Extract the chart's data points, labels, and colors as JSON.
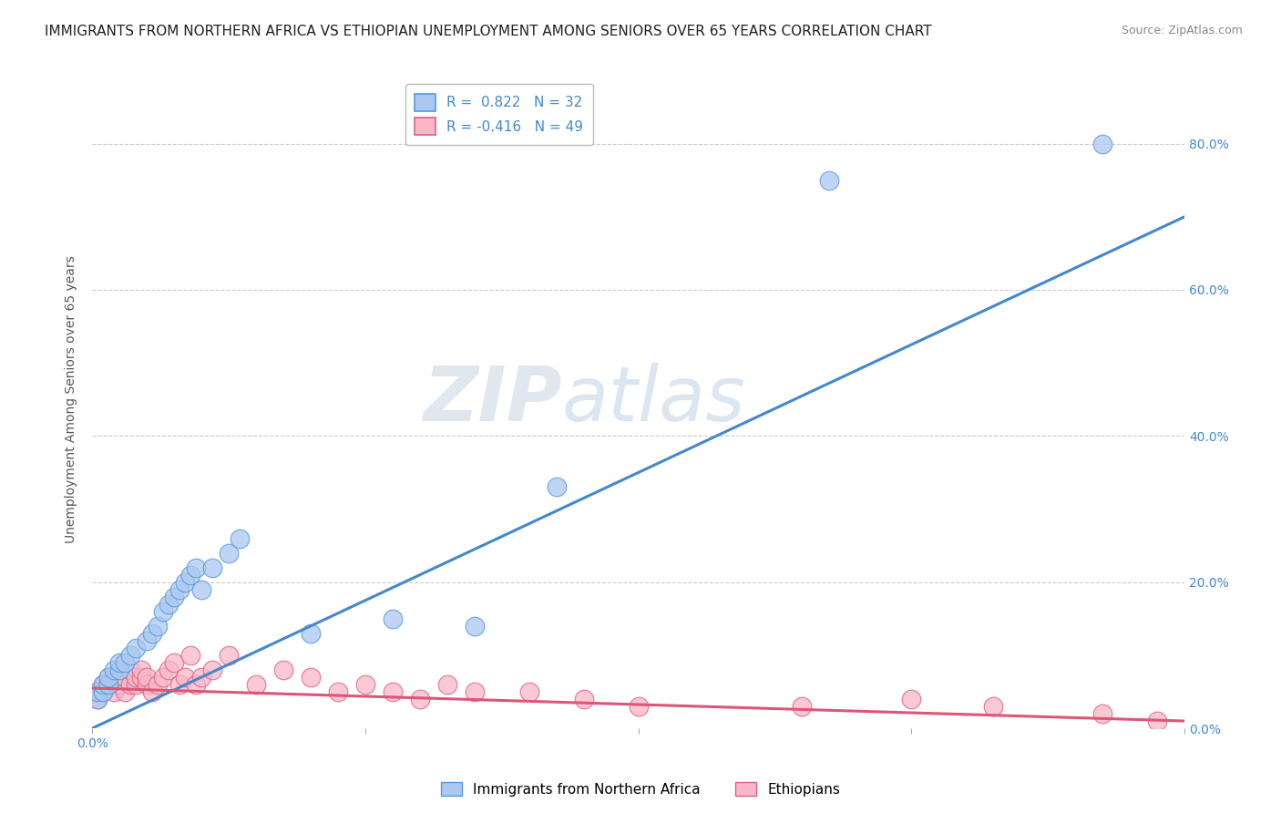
{
  "title": "IMMIGRANTS FROM NORTHERN AFRICA VS ETHIOPIAN UNEMPLOYMENT AMONG SENIORS OVER 65 YEARS CORRELATION CHART",
  "source": "Source: ZipAtlas.com",
  "ylabel": "Unemployment Among Seniors over 65 years",
  "xlabel_blue": "Immigrants from Northern Africa",
  "xlabel_pink": "Ethiopians",
  "R_blue": 0.822,
  "N_blue": 32,
  "R_pink": -0.416,
  "N_pink": 49,
  "xlim": [
    0.0,
    0.2
  ],
  "ylim": [
    0.0,
    0.9
  ],
  "blue_scatter_x": [
    0.001,
    0.001,
    0.002,
    0.002,
    0.003,
    0.003,
    0.004,
    0.005,
    0.005,
    0.006,
    0.007,
    0.008,
    0.01,
    0.011,
    0.012,
    0.013,
    0.014,
    0.015,
    0.016,
    0.017,
    0.018,
    0.019,
    0.02,
    0.022,
    0.025,
    0.027,
    0.04,
    0.055,
    0.07,
    0.085,
    0.135,
    0.185
  ],
  "blue_scatter_y": [
    0.04,
    0.05,
    0.05,
    0.06,
    0.06,
    0.07,
    0.08,
    0.08,
    0.09,
    0.09,
    0.1,
    0.11,
    0.12,
    0.13,
    0.14,
    0.16,
    0.17,
    0.18,
    0.19,
    0.2,
    0.21,
    0.22,
    0.19,
    0.22,
    0.24,
    0.26,
    0.13,
    0.15,
    0.14,
    0.33,
    0.75,
    0.8
  ],
  "pink_scatter_x": [
    0.001,
    0.001,
    0.002,
    0.002,
    0.003,
    0.003,
    0.004,
    0.004,
    0.005,
    0.005,
    0.006,
    0.006,
    0.007,
    0.007,
    0.008,
    0.008,
    0.009,
    0.009,
    0.01,
    0.01,
    0.011,
    0.012,
    0.013,
    0.014,
    0.015,
    0.016,
    0.017,
    0.018,
    0.019,
    0.02,
    0.022,
    0.025,
    0.03,
    0.035,
    0.04,
    0.045,
    0.05,
    0.055,
    0.06,
    0.065,
    0.07,
    0.08,
    0.09,
    0.1,
    0.13,
    0.15,
    0.165,
    0.185,
    0.195
  ],
  "pink_scatter_y": [
    0.04,
    0.05,
    0.05,
    0.06,
    0.06,
    0.07,
    0.05,
    0.07,
    0.06,
    0.07,
    0.05,
    0.07,
    0.06,
    0.08,
    0.06,
    0.07,
    0.07,
    0.08,
    0.06,
    0.07,
    0.05,
    0.06,
    0.07,
    0.08,
    0.09,
    0.06,
    0.07,
    0.1,
    0.06,
    0.07,
    0.08,
    0.1,
    0.06,
    0.08,
    0.07,
    0.05,
    0.06,
    0.05,
    0.04,
    0.06,
    0.05,
    0.05,
    0.04,
    0.03,
    0.03,
    0.04,
    0.03,
    0.02,
    0.01
  ],
  "blue_trend": [
    0.0,
    0.2,
    0.0,
    0.7
  ],
  "pink_trend": [
    0.0,
    0.2,
    0.055,
    0.01
  ],
  "blue_color": "#aac8f0",
  "blue_edge_color": "#5599dd",
  "pink_color": "#f8b8c8",
  "pink_edge_color": "#e06080",
  "blue_line_color": "#4488cc",
  "pink_line_color": "#dd5577",
  "watermark_text": "ZIPatlas",
  "watermark_color": "#d0dde8",
  "grid_color": "#cccccc",
  "background_color": "#ffffff",
  "title_fontsize": 11,
  "source_fontsize": 9,
  "tick_color": "#4488cc",
  "ylabel_color": "#555555",
  "ylabel_fontsize": 10
}
